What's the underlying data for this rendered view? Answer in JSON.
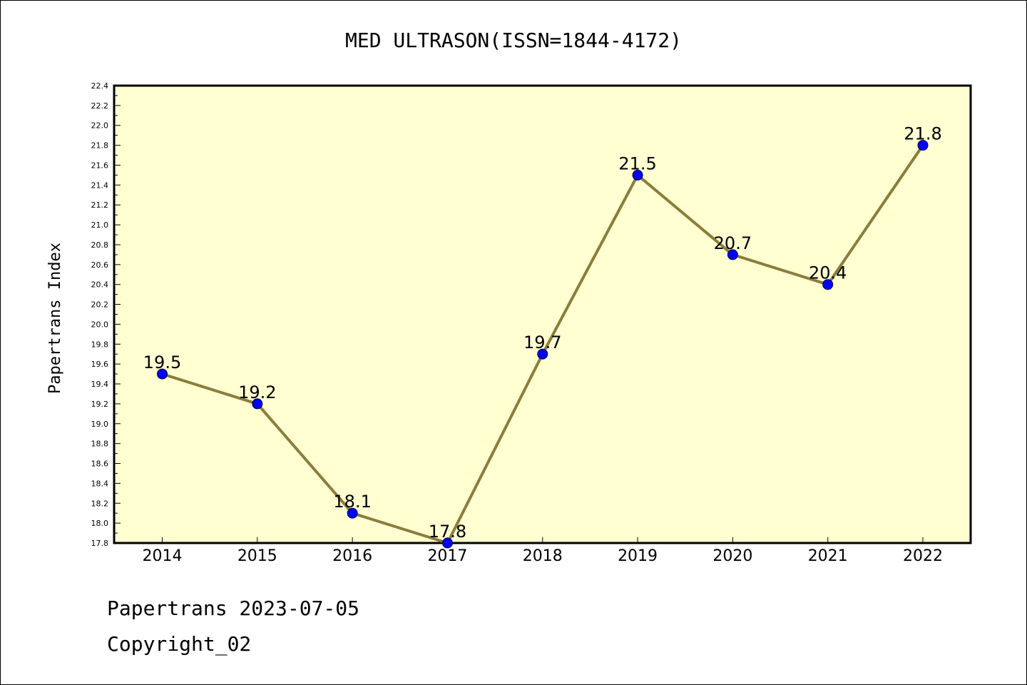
{
  "chart_data": {
    "type": "line",
    "title": "MED ULTRASON(ISSN=1844-4172)",
    "ylabel": "Papertrans Index",
    "xlabel": "",
    "categories": [
      "2014",
      "2015",
      "2016",
      "2017",
      "2018",
      "2019",
      "2020",
      "2021",
      "2022"
    ],
    "series": [
      {
        "values": [
          19.5,
          19.2,
          18.1,
          17.8,
          19.7,
          21.5,
          20.7,
          20.4,
          21.8
        ],
        "data_labels": [
          "19.5",
          "19.2",
          "18.1",
          "17.8",
          "19.7",
          "21.5",
          "20.7",
          "20.4",
          "21.8"
        ]
      }
    ],
    "ylim": [
      17.8,
      22.4
    ],
    "yticks": [
      "17.8",
      "18.0",
      "18.2",
      "18.4",
      "18.6",
      "18.8",
      "19.0",
      "19.2",
      "19.4",
      "19.6",
      "19.8",
      "20.0",
      "20.2",
      "20.4",
      "20.6",
      "20.8",
      "21.0",
      "21.2",
      "21.4",
      "21.6",
      "21.8",
      "22.0",
      "22.2",
      "22.4"
    ],
    "grid": false,
    "colors": {
      "plot_background": "#ffffd2",
      "line": "#8b7d3a",
      "marker": "#0000ff"
    }
  },
  "footer": {
    "line1": "Papertrans 2023-07-05",
    "line2": "Copyright_02"
  }
}
